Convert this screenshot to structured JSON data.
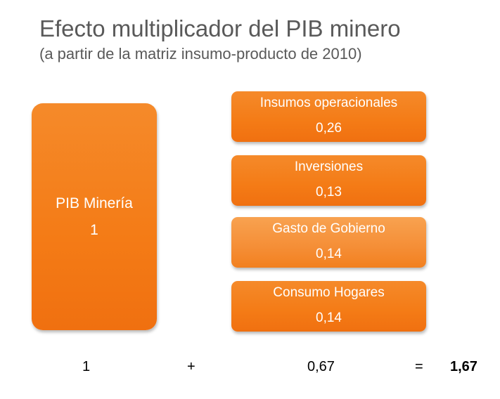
{
  "title": "Efecto multiplicador del PIB minero",
  "subtitle": "(a partir de la matriz insumo-producto de 2010)",
  "main_box": {
    "label": "PIB Minería",
    "value": "1"
  },
  "components": [
    {
      "label": "Insumos operacionales",
      "value": "0,26"
    },
    {
      "label": "Inversiones",
      "value": "0,13"
    },
    {
      "label": "Gasto de Gobierno",
      "value": "0,14"
    },
    {
      "label": "Consumo Hogares",
      "value": "0,14"
    }
  ],
  "formula": {
    "term1": "1",
    "plus": "+",
    "term2": "0,67",
    "equals": "=",
    "result": "1,67"
  },
  "colors": {
    "box_orange": "#f47b16",
    "box_orange_light": "#f58e36",
    "title_gray": "#595959"
  }
}
